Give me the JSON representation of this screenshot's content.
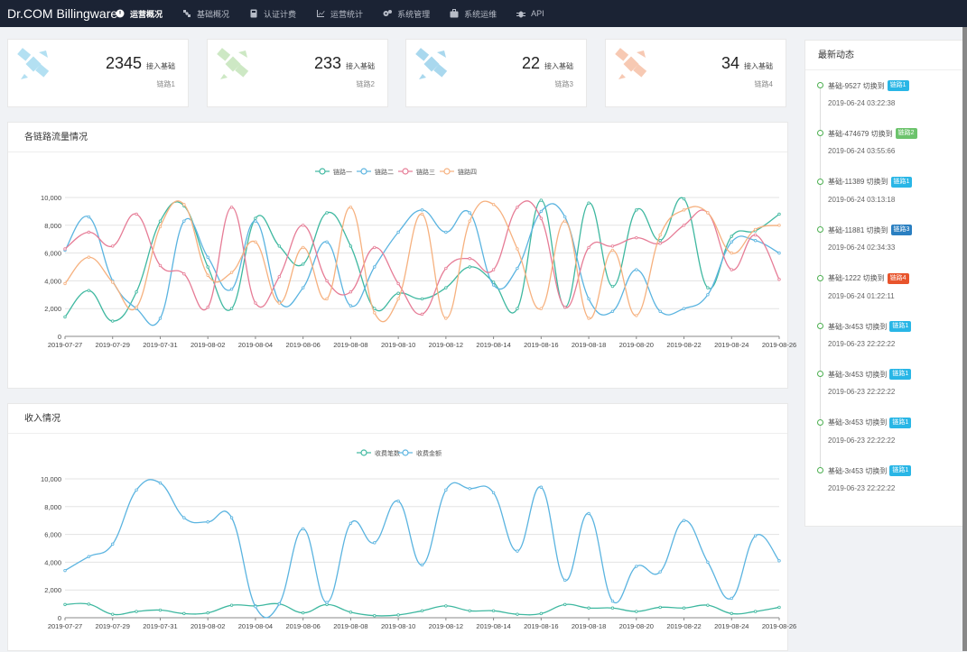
{
  "app": {
    "title": "Dr.COM Billingware"
  },
  "nav": [
    {
      "label": "运营概况",
      "icon": "dashboard-icon",
      "active": true
    },
    {
      "label": "基础概况",
      "icon": "satellite-icon",
      "active": false
    },
    {
      "label": "认证计费",
      "icon": "calculator-icon",
      "active": false
    },
    {
      "label": "运营统计",
      "icon": "line-chart-icon",
      "active": false
    },
    {
      "label": "系统管理",
      "icon": "gears-icon",
      "active": false
    },
    {
      "label": "系统运维",
      "icon": "briefcase-icon",
      "active": false
    },
    {
      "label": "API",
      "icon": "bug-icon",
      "active": false
    }
  ],
  "stats": [
    {
      "value": "2345",
      "unit": "接入基础",
      "link": "链路1",
      "color": "#b3e0f2"
    },
    {
      "value": "233",
      "unit": "接入基础",
      "link": "链路2",
      "color": "#cde8c4"
    },
    {
      "value": "22",
      "unit": "接入基础",
      "link": "链路3",
      "color": "#a9d8ee"
    },
    {
      "value": "34",
      "unit": "接入基础",
      "link": "链路4",
      "color": "#f7c9b3"
    }
  ],
  "traffic": {
    "title": "各链路流量情况"
  },
  "income": {
    "title": "收入情况"
  },
  "feed": {
    "title": "最新动态",
    "items": [
      {
        "text": "基础-9527 切换到",
        "badge": "链路1",
        "badge_color": "#29b6e6",
        "time": "2019-06-24 03:22:38"
      },
      {
        "text": "基础-474679 切换到",
        "badge": "链路2",
        "badge_color": "#6cc36c",
        "time": "2019-06-24 03:55:66"
      },
      {
        "text": "基础-11389 切换到",
        "badge": "链路1",
        "badge_color": "#29b6e6",
        "time": "2019-06-24 03:13:18"
      },
      {
        "text": "基础-11881 切换到",
        "badge": "链路3",
        "badge_color": "#2a7fc1",
        "time": "2019-06-24 02:34:33"
      },
      {
        "text": "基础-1222 切换到",
        "badge": "链路4",
        "badge_color": "#e8542c",
        "time": "2019-06-24 01:22:11"
      },
      {
        "text": "基础-3r453 切换到",
        "badge": "链路1",
        "badge_color": "#29b6e6",
        "time": "2019-06-23 22:22:22"
      },
      {
        "text": "基础-3r453 切换到",
        "badge": "链路1",
        "badge_color": "#29b6e6",
        "time": "2019-06-23 22:22:22"
      },
      {
        "text": "基础-3r453 切换到",
        "badge": "链路1",
        "badge_color": "#29b6e6",
        "time": "2019-06-23 22:22:22"
      },
      {
        "text": "基础-3r453 切换到",
        "badge": "链路1",
        "badge_color": "#29b6e6",
        "time": "2019-06-23 22:22:22"
      }
    ]
  },
  "chart_data": [
    {
      "type": "line",
      "title": "各链路流量情况",
      "ylim": [
        0,
        10000
      ],
      "yticks": [
        "0",
        "2,000",
        "4,000",
        "6,000",
        "8,000",
        "10,000"
      ],
      "xtick_labels": [
        "2019-07-27",
        "2019-07-29",
        "2019-07-31",
        "2019-08-02",
        "2019-08-04",
        "2019-08-06",
        "2019-08-08",
        "2019-08-10",
        "2019-08-12",
        "2019-08-14",
        "2019-08-16",
        "2019-08-18",
        "2019-08-20",
        "2019-08-22",
        "2019-08-24",
        "2019-08-26"
      ],
      "x": [
        "2019-07-27",
        "2019-07-28",
        "2019-07-29",
        "2019-07-30",
        "2019-07-31",
        "2019-08-01",
        "2019-08-02",
        "2019-08-03",
        "2019-08-04",
        "2019-08-05",
        "2019-08-06",
        "2019-08-07",
        "2019-08-08",
        "2019-08-09",
        "2019-08-10",
        "2019-08-11",
        "2019-08-12",
        "2019-08-13",
        "2019-08-14",
        "2019-08-15",
        "2019-08-16",
        "2019-08-17",
        "2019-08-18",
        "2019-08-19",
        "2019-08-20",
        "2019-08-21",
        "2019-08-22",
        "2019-08-23",
        "2019-08-24",
        "2019-08-25",
        "2019-08-26"
      ],
      "grid": true,
      "legend": "top",
      "series": [
        {
          "name": "链路一",
          "color": "#3fb8a0",
          "values": [
            1400,
            3300,
            1100,
            3200,
            8300,
            9400,
            5000,
            2000,
            8500,
            6500,
            5200,
            8900,
            6500,
            2000,
            3100,
            2700,
            3500,
            5000,
            3900,
            2000,
            9800,
            2100,
            9600,
            3600,
            9100,
            6900,
            9900,
            3500,
            7200,
            7600,
            8800
          ]
        },
        {
          "name": "链路二",
          "color": "#5bb4e0",
          "values": [
            6200,
            8600,
            4000,
            2000,
            1300,
            8300,
            5700,
            3400,
            8300,
            2500,
            3500,
            6800,
            2200,
            5000,
            7500,
            9100,
            7500,
            8900,
            3700,
            4900,
            9000,
            8600,
            2700,
            1800,
            4800,
            1800,
            2000,
            3000,
            6800,
            6900,
            6000
          ]
        },
        {
          "name": "链路三",
          "color": "#e67c96",
          "values": [
            6300,
            7500,
            6500,
            8800,
            5100,
            4500,
            2100,
            9300,
            2400,
            4300,
            8000,
            4000,
            3200,
            6400,
            3800,
            1600,
            4900,
            5600,
            4800,
            9300,
            8500,
            2100,
            6400,
            6500,
            7100,
            6700,
            8000,
            8900,
            4800,
            7300,
            4100
          ]
        },
        {
          "name": "链路四",
          "color": "#f6b17f",
          "values": [
            3800,
            5700,
            3900,
            2100,
            7900,
            9500,
            4400,
            4600,
            6800,
            2400,
            6400,
            2700,
            9300,
            1700,
            2700,
            8800,
            1300,
            8300,
            9500,
            6300,
            2000,
            8300,
            1300,
            6200,
            1500,
            7300,
            9100,
            8900,
            6000,
            7700,
            8000
          ]
        }
      ]
    },
    {
      "type": "line",
      "title": "收入情况",
      "ylim": [
        0,
        10000
      ],
      "yticks": [
        "0",
        "2,000",
        "4,000",
        "6,000",
        "8,000",
        "10,000"
      ],
      "xtick_labels": [
        "2019-07-27",
        "2019-07-29",
        "2019-07-31",
        "2019-08-02",
        "2019-08-04",
        "2019-08-06",
        "2019-08-08",
        "2019-08-10",
        "2019-08-12",
        "2019-08-14",
        "2019-08-16",
        "2019-08-18",
        "2019-08-20",
        "2019-08-22",
        "2019-08-24",
        "2019-08-26"
      ],
      "x": [
        "2019-07-27",
        "2019-07-28",
        "2019-07-29",
        "2019-07-30",
        "2019-07-31",
        "2019-08-01",
        "2019-08-02",
        "2019-08-03",
        "2019-08-04",
        "2019-08-05",
        "2019-08-06",
        "2019-08-07",
        "2019-08-08",
        "2019-08-09",
        "2019-08-10",
        "2019-08-11",
        "2019-08-12",
        "2019-08-13",
        "2019-08-14",
        "2019-08-15",
        "2019-08-16",
        "2019-08-17",
        "2019-08-18",
        "2019-08-19",
        "2019-08-20",
        "2019-08-21",
        "2019-08-22",
        "2019-08-23",
        "2019-08-24",
        "2019-08-25",
        "2019-08-26"
      ],
      "grid": true,
      "legend": "top",
      "series": [
        {
          "name": "收费笔数",
          "color": "#3fb8a0",
          "values": [
            950,
            980,
            250,
            450,
            550,
            300,
            350,
            900,
            850,
            1000,
            350,
            950,
            400,
            150,
            200,
            500,
            850,
            500,
            500,
            250,
            300,
            950,
            700,
            700,
            450,
            750,
            700,
            900,
            300,
            450,
            750
          ]
        },
        {
          "name": "收费金额",
          "color": "#5bb4e0",
          "values": [
            3400,
            4400,
            5300,
            9200,
            9700,
            7200,
            6900,
            7200,
            800,
            1000,
            6400,
            1100,
            6800,
            5400,
            8400,
            3800,
            9200,
            9300,
            9000,
            4800,
            9400,
            2700,
            7500,
            1200,
            3700,
            3300,
            7000,
            4000,
            1400,
            5900,
            4100
          ]
        }
      ]
    }
  ]
}
